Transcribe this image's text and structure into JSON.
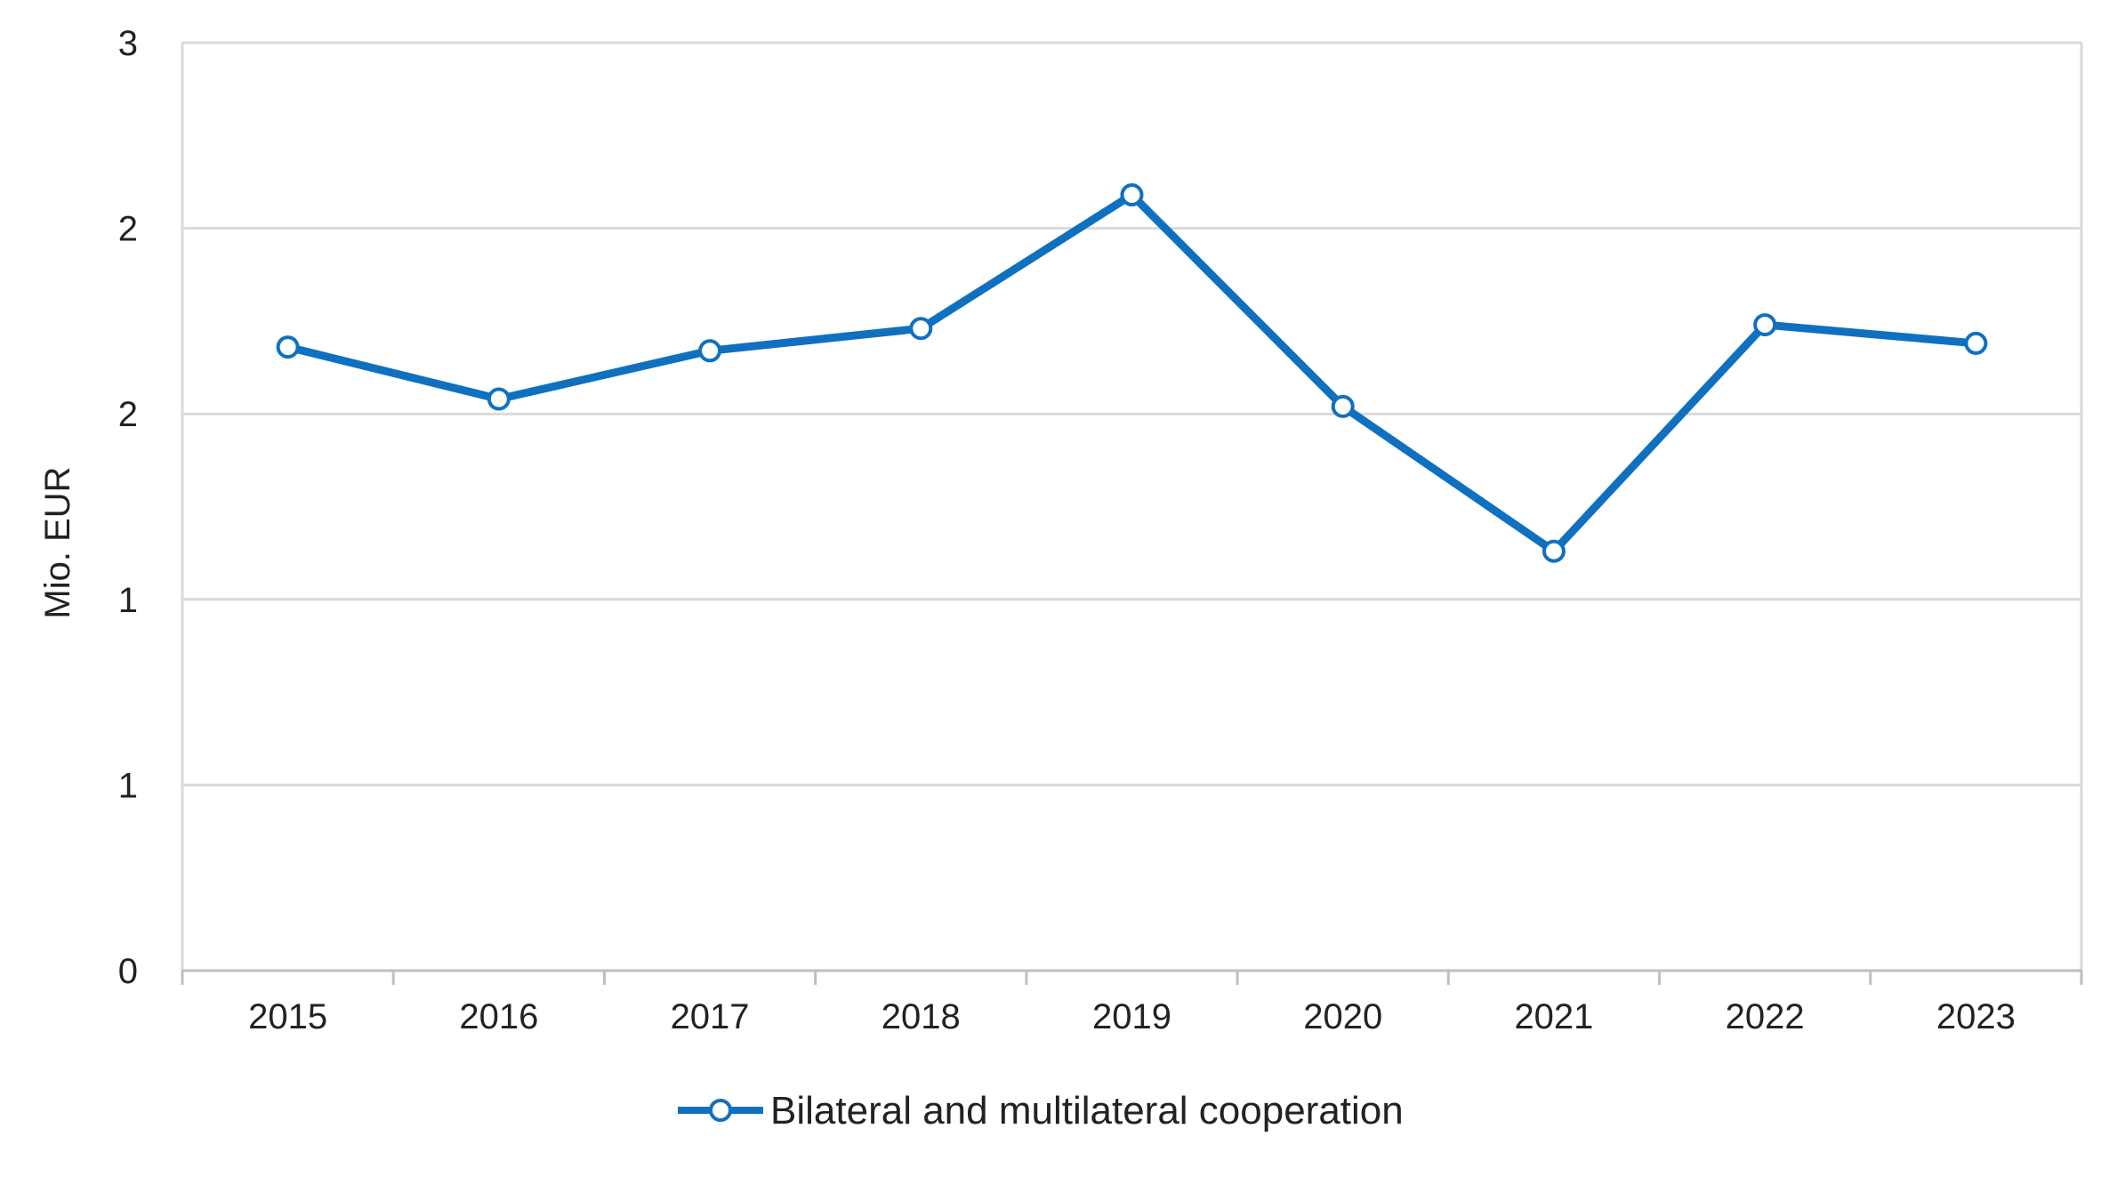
{
  "chart_data": {
    "type": "line",
    "title": "",
    "xlabel": "",
    "ylabel": "Mio. EUR",
    "categories": [
      "2015",
      "2016",
      "2017",
      "2018",
      "2019",
      "2020",
      "2021",
      "2022",
      "2023"
    ],
    "series": [
      {
        "name": "Bilateral and multilateral cooperation",
        "color": "#1070C0",
        "marker": "open-circle",
        "values": [
          1.68,
          1.54,
          1.67,
          1.73,
          2.09,
          1.52,
          1.13,
          1.74,
          1.69
        ]
      }
    ],
    "ylim": [
      0,
      2.5
    ],
    "yticks": [
      0,
      0.5,
      1,
      1.5,
      2,
      2.5
    ],
    "ytick_labels": [
      "0",
      "1",
      "1",
      "2",
      "2",
      "3"
    ],
    "grid": "horizontal",
    "legend_position": "bottom-center"
  },
  "colors": {
    "series": "#1070C0",
    "grid": "#D9D9D9",
    "axis": "#BFBFBF",
    "marker_fill": "#FFFFFF"
  }
}
